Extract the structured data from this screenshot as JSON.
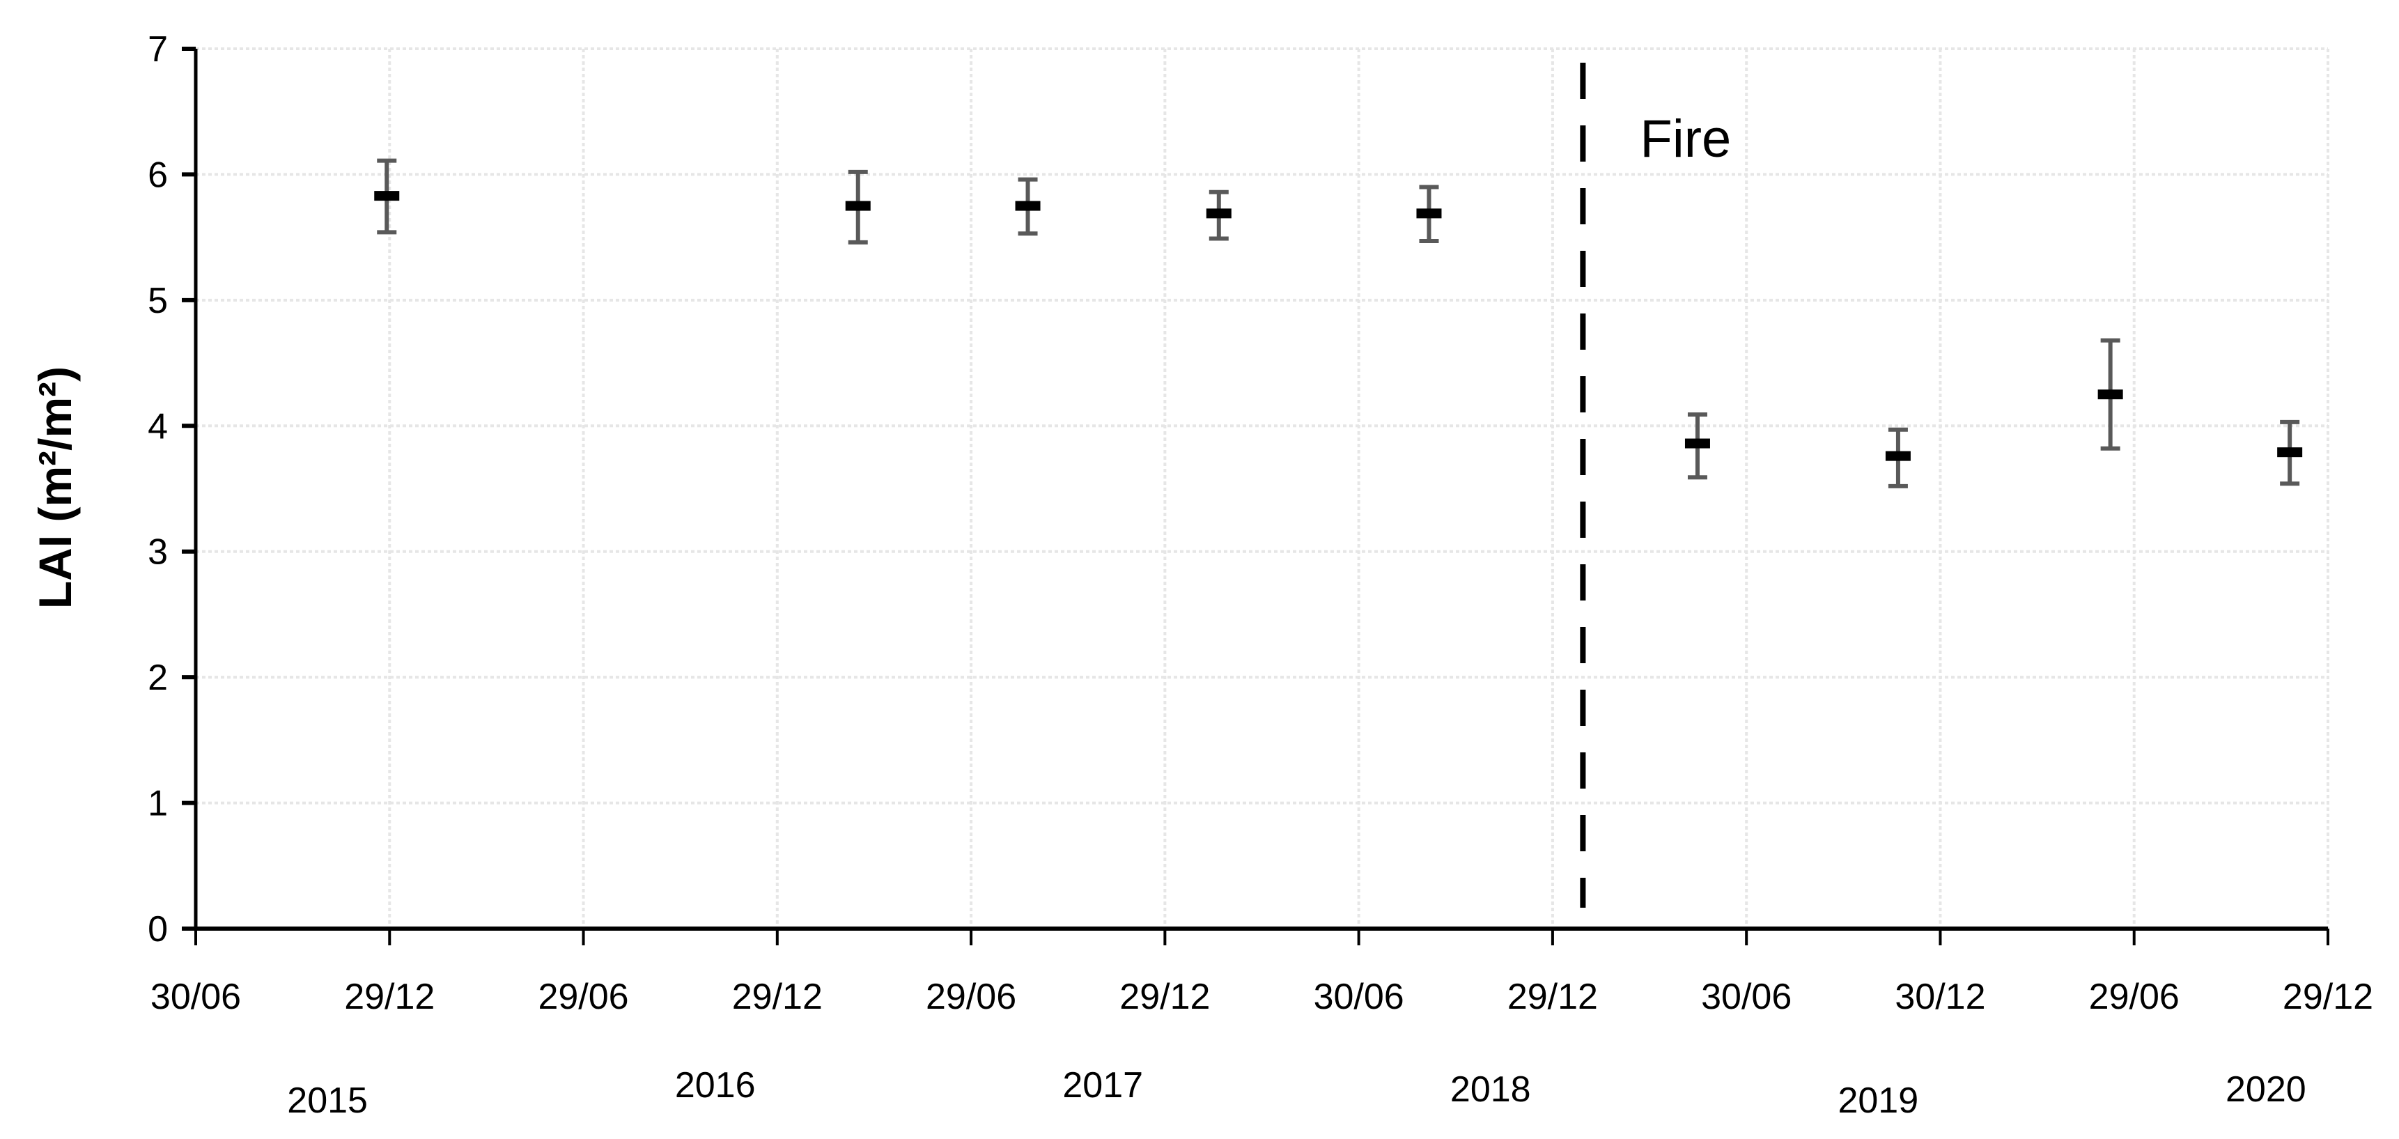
{
  "chart_data": {
    "type": "scatter",
    "title": "",
    "xlabel": "",
    "ylabel": "LAI (m²/m²)",
    "ylim": [
      0,
      7
    ],
    "yticks": [
      0,
      1,
      2,
      3,
      4,
      5,
      6,
      7
    ],
    "xlim": [
      "2015-06-30",
      "2020-12-29"
    ],
    "xtick_dates": [
      "2015-06-30",
      "2015-12-29",
      "2016-06-29",
      "2016-12-29",
      "2017-06-29",
      "2017-12-29",
      "2018-06-30",
      "2018-12-29",
      "2019-06-30",
      "2019-12-30",
      "2020-06-29",
      "2020-12-29"
    ],
    "xtick_labels": [
      "30/06",
      "29/12",
      "29/06",
      "29/12",
      "29/06",
      "29/12",
      "30/06",
      "29/12",
      "30/06",
      "30/12",
      "29/06",
      "29/12"
    ],
    "year_labels": [
      "2015",
      "2016",
      "2017",
      "2018",
      "2019",
      "2020"
    ],
    "grid": true,
    "legend": "none",
    "points": [
      {
        "date": "2015-12-27",
        "lai": 5.83,
        "err_low": 5.54,
        "err_high": 6.11
      },
      {
        "date": "2017-03-15",
        "lai": 5.75,
        "err_low": 5.46,
        "err_high": 6.02
      },
      {
        "date": "2017-08-22",
        "lai": 5.75,
        "err_low": 5.53,
        "err_high": 5.96
      },
      {
        "date": "2018-02-18",
        "lai": 5.69,
        "err_low": 5.49,
        "err_high": 5.86
      },
      {
        "date": "2018-09-04",
        "lai": 5.69,
        "err_low": 5.47,
        "err_high": 5.9
      },
      {
        "date": "2019-05-15",
        "lai": 3.86,
        "err_low": 3.59,
        "err_high": 4.09
      },
      {
        "date": "2019-11-20",
        "lai": 3.76,
        "err_low": 3.52,
        "err_high": 3.97
      },
      {
        "date": "2020-06-07",
        "lai": 4.25,
        "err_low": 3.82,
        "err_high": 4.68
      },
      {
        "date": "2020-11-23",
        "lai": 3.79,
        "err_low": 3.54,
        "err_high": 4.03
      }
    ],
    "annotations": [
      {
        "type": "vline",
        "date": "2019-01-27",
        "style": "dashed",
        "label": "Fire"
      }
    ],
    "colors": {
      "marker": "#000000",
      "error_bar": "#595959",
      "grid": "#e6e6e6",
      "axis": "#000000"
    }
  }
}
